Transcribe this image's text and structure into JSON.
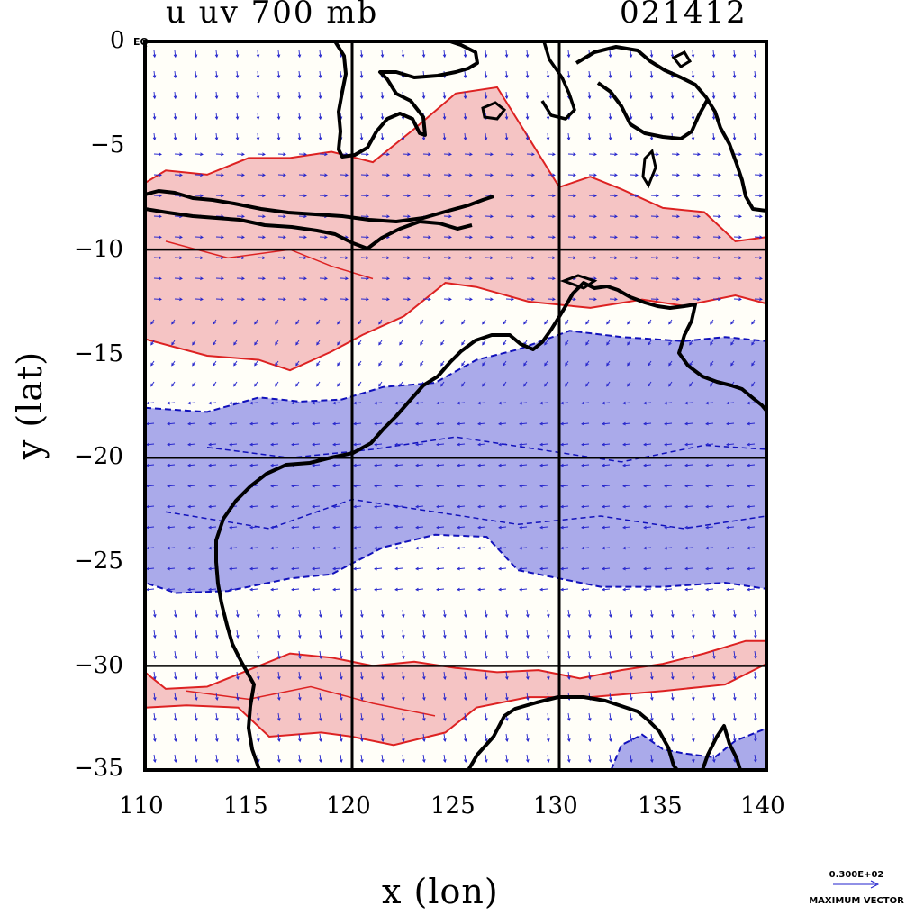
{
  "title": {
    "field": "u uv 700 mb",
    "date": "021412"
  },
  "axes": {
    "xlabel": "x (lon)",
    "ylabel": "y (lat)",
    "x_ticks": [
      "110",
      "115",
      "120",
      "125",
      "130",
      "135",
      "140"
    ],
    "y_ticks": [
      "0",
      "−5",
      "−10",
      "−15",
      "−20",
      "−25",
      "−30",
      "−35"
    ],
    "eq_label": "EQ",
    "xlim": [
      110,
      140
    ],
    "ylim": [
      -35,
      0
    ]
  },
  "gridlines": {
    "lon": [
      120,
      130
    ],
    "lat": [
      -10,
      -20,
      -30
    ]
  },
  "legend": {
    "value": "0.300E+02",
    "caption": "MAXIMUM VECTOR"
  },
  "colors": {
    "positive_fill": "#f5c4c4",
    "positive_line": "#dd2222",
    "negative_fill": "#aaaaea",
    "negative_line": "#1111bb",
    "coast": "#000000",
    "vector": "#2222cc"
  },
  "chart_data": {
    "type": "contour-vector-map",
    "variable": "u wind",
    "level": "700 mb",
    "x": {
      "label": "x (lon)",
      "range": [
        110,
        140
      ],
      "ticks": [
        110,
        115,
        120,
        125,
        130,
        135,
        140
      ]
    },
    "y": {
      "label": "y (lat)",
      "range": [
        -35,
        0
      ],
      "ticks": [
        0,
        -5,
        -10,
        -15,
        -20,
        -25,
        -30,
        -35
      ]
    },
    "positive_regions": [
      [
        [
          110,
          -6.8
        ],
        [
          111,
          -6.2
        ],
        [
          113,
          -6.4
        ],
        [
          115,
          -5.6
        ],
        [
          117,
          -5.6
        ],
        [
          119,
          -5.3
        ],
        [
          121,
          -5.8
        ],
        [
          123,
          -4.2
        ],
        [
          125,
          -2.5
        ],
        [
          127,
          -2.2
        ],
        [
          128.5,
          -4.6
        ],
        [
          130,
          -7.0
        ],
        [
          131.5,
          -6.5
        ],
        [
          133,
          -7.1
        ],
        [
          135,
          -8.0
        ],
        [
          137,
          -8.2
        ],
        [
          138.5,
          -9.6
        ],
        [
          140,
          -9.4
        ],
        [
          140,
          -12.6
        ],
        [
          138.5,
          -12.2
        ],
        [
          136,
          -12.7
        ],
        [
          134,
          -12.4
        ],
        [
          131.5,
          -12.8
        ],
        [
          128.5,
          -12.5
        ],
        [
          126,
          -11.8
        ],
        [
          124.5,
          -11.6
        ],
        [
          122.5,
          -13.2
        ],
        [
          120.5,
          -14.1
        ],
        [
          119,
          -14.9
        ],
        [
          117,
          -15.8
        ],
        [
          115.5,
          -15.3
        ],
        [
          113,
          -15.1
        ],
        [
          110,
          -14.3
        ]
      ],
      [
        [
          110,
          -30.3
        ],
        [
          111,
          -31.1
        ],
        [
          113,
          -31.0
        ],
        [
          115,
          -30.2
        ],
        [
          117,
          -29.4
        ],
        [
          119,
          -29.6
        ],
        [
          121,
          -30.0
        ],
        [
          123,
          -29.8
        ],
        [
          125,
          -30.1
        ],
        [
          127,
          -30.3
        ],
        [
          129,
          -30.2
        ],
        [
          131,
          -30.6
        ],
        [
          133,
          -30.2
        ],
        [
          135,
          -29.9
        ],
        [
          137,
          -29.4
        ],
        [
          139,
          -28.8
        ],
        [
          140,
          -28.8
        ],
        [
          140,
          -29.9
        ],
        [
          138,
          -30.9
        ],
        [
          135,
          -31.2
        ],
        [
          131.5,
          -31.5
        ],
        [
          128.5,
          -31.5
        ],
        [
          126,
          -32.0
        ],
        [
          124.5,
          -33.2
        ],
        [
          122,
          -33.8
        ],
        [
          120,
          -33.4
        ],
        [
          118.5,
          -33.2
        ],
        [
          116,
          -33.4
        ],
        [
          114.5,
          -32.0
        ],
        [
          112,
          -31.9
        ],
        [
          110,
          -32.0
        ]
      ]
    ],
    "negative_regions": [
      [
        [
          110,
          -17.6
        ],
        [
          113,
          -17.8
        ],
        [
          115.5,
          -17.1
        ],
        [
          117.5,
          -17.3
        ],
        [
          119.5,
          -17.2
        ],
        [
          121.5,
          -16.6
        ],
        [
          124,
          -16.4
        ],
        [
          126,
          -15.3
        ],
        [
          128,
          -14.8
        ],
        [
          130.5,
          -13.9
        ],
        [
          133,
          -14.2
        ],
        [
          136,
          -14.4
        ],
        [
          138,
          -14.2
        ],
        [
          140,
          -14.4
        ],
        [
          140,
          -26.3
        ],
        [
          138,
          -26.0
        ],
        [
          135,
          -26.2
        ],
        [
          132,
          -26.2
        ],
        [
          130,
          -25.8
        ],
        [
          128,
          -25.4
        ],
        [
          126.5,
          -23.8
        ],
        [
          124,
          -23.7
        ],
        [
          121.5,
          -24.3
        ],
        [
          119,
          -25.6
        ],
        [
          117,
          -25.8
        ],
        [
          114,
          -26.4
        ],
        [
          111.5,
          -26.5
        ],
        [
          110,
          -26.0
        ]
      ],
      [
        [
          132.5,
          -35
        ],
        [
          133,
          -33.8
        ],
        [
          134,
          -33.3
        ],
        [
          135,
          -34.0
        ],
        [
          136,
          -34.2
        ],
        [
          137.5,
          -34.4
        ],
        [
          138.5,
          -33.6
        ],
        [
          140,
          -33.0
        ],
        [
          140,
          -35
        ]
      ]
    ]
  }
}
